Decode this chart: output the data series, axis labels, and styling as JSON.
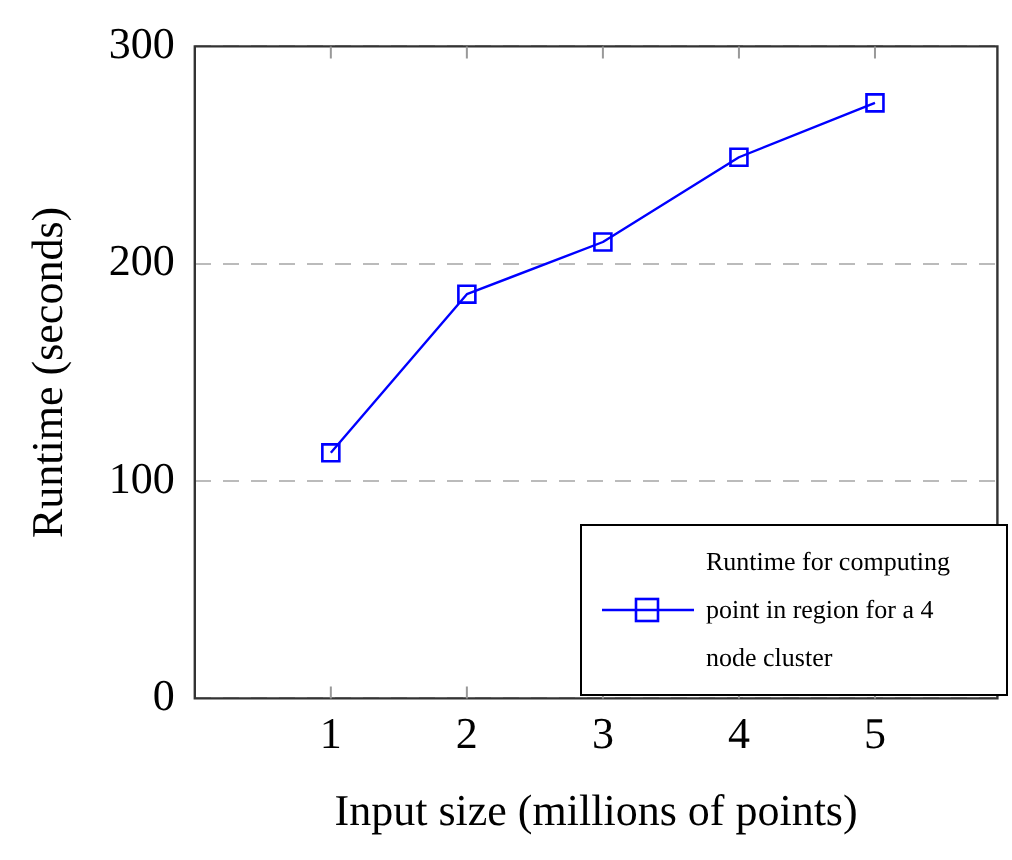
{
  "chart_data": {
    "type": "line",
    "xlabel": "Input size (millions of points)",
    "ylabel": "Runtime (seconds)",
    "x": [
      1,
      2,
      3,
      4,
      5
    ],
    "series": [
      {
        "name": "Runtime for computing point in region for a 4 node cluster",
        "color": "#0000ff",
        "values": [
          113,
          186,
          210,
          249,
          274
        ]
      }
    ],
    "xlim": [
      0,
      5.9
    ],
    "xticks": [
      1,
      2,
      3,
      4,
      5
    ],
    "ylim": [
      0,
      300
    ],
    "yticks": [
      0,
      100,
      200,
      300
    ],
    "grid": "y",
    "legend": "bottom right",
    "marker": "square",
    "line_style": "solid"
  }
}
